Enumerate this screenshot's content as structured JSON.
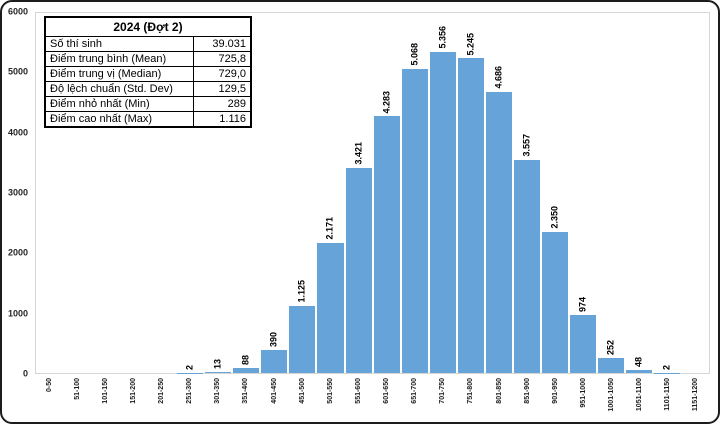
{
  "stats_table": {
    "title": "2024 (Đợt 2)",
    "rows": [
      {
        "label": "Số thí sinh",
        "value": "39.031"
      },
      {
        "label": "Điểm trung bình (Mean)",
        "value": "725,8"
      },
      {
        "label": "Điểm trung vị (Median)",
        "value": "729,0"
      },
      {
        "label": "Độ lệch chuẩn (Std. Dev)",
        "value": "129,5"
      },
      {
        "label": "Điểm nhỏ nhất (Min)",
        "value": "289"
      },
      {
        "label": "Điểm cao nhất (Max)",
        "value": "1.116"
      }
    ]
  },
  "chart_data": {
    "type": "bar",
    "title": "",
    "xlabel": "",
    "ylabel": "",
    "categories": [
      "0-50",
      "51-100",
      "101-150",
      "151-200",
      "201-250",
      "251-300",
      "301-350",
      "351-400",
      "401-450",
      "451-500",
      "501-550",
      "551-600",
      "601-650",
      "651-700",
      "701-750",
      "751-800",
      "801-850",
      "851-900",
      "901-950",
      "951-1000",
      "1001-1050",
      "1051-1100",
      "1101-1150",
      "1151-1200"
    ],
    "values": [
      0,
      0,
      0,
      0,
      0,
      2,
      13,
      88,
      390,
      1125,
      2171,
      3421,
      4283,
      5068,
      5356,
      5245,
      4686,
      3557,
      2350,
      974,
      252,
      48,
      2,
      0
    ],
    "bar_labels": [
      "",
      "",
      "",
      "",
      "",
      "2",
      "13",
      "88",
      "390",
      "1.125",
      "2.171",
      "3.421",
      "4.283",
      "5.068",
      "5.356",
      "5.245",
      "4.686",
      "3.557",
      "2.350",
      "974",
      "252",
      "48",
      "2",
      ""
    ],
    "ylim": [
      0,
      6000
    ],
    "y_ticks": [
      0,
      1000,
      2000,
      3000,
      4000,
      5000,
      6000
    ],
    "y_tick_labels": [
      "0",
      "1000",
      "2000",
      "3000",
      "4000",
      "5000",
      "6000"
    ],
    "bar_color": "#65A3D8",
    "grid": false,
    "legend": "none"
  }
}
